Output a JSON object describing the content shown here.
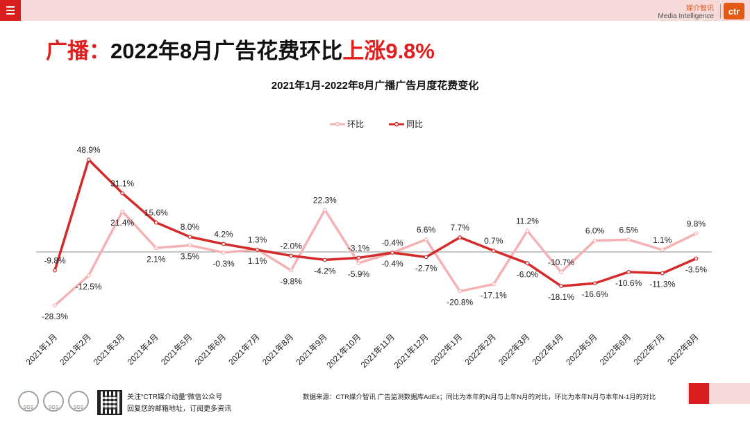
{
  "header": {
    "menu_icon": "menu-icon",
    "brand_cn": "媒介智讯",
    "brand_en": "Media Intelligence",
    "logo_text": "ctr"
  },
  "headline": {
    "prefix": "广播：",
    "middle": "2022年8月广告花费环比",
    "highlight": "上涨9.8%",
    "accent_color": "#e01e1e"
  },
  "chart_data": {
    "type": "line",
    "title": "2021年1月-2022年8月广播广告月度花费变化",
    "categories": [
      "2021年1月",
      "2021年2月",
      "2021年3月",
      "2021年4月",
      "2021年5月",
      "2021年6月",
      "2021年7月",
      "2021年8月",
      "2021年9月",
      "2021年10月",
      "2021年11月",
      "2021年12月",
      "2022年1月",
      "2022年2月",
      "2022年3月",
      "2022年4月",
      "2022年5月",
      "2022年6月",
      "2022年7月",
      "2022年8月"
    ],
    "series": [
      {
        "name": "环比",
        "color": "#f4b2b2",
        "values": [
          -28.3,
          -12.5,
          21.4,
          2.1,
          3.5,
          -0.3,
          1.3,
          -9.8,
          22.3,
          -5.9,
          -0.4,
          6.6,
          -20.8,
          -17.1,
          11.2,
          -10.7,
          6.0,
          6.5,
          1.1,
          9.8
        ],
        "labels": [
          "-28.3%",
          "-12.5%",
          "21.4%",
          "2.1%",
          "3.5%",
          "-0.3%",
          "1.3%",
          "-9.8%",
          "22.3%",
          "-5.9%",
          "-0.4%",
          "6.6%",
          "-20.8%",
          "-17.1%",
          "11.2%",
          "-10.7%",
          "6.0%",
          "6.5%",
          "1.1%",
          "9.8%"
        ]
      },
      {
        "name": "同比",
        "color": "#d42a2a",
        "values": [
          -9.8,
          48.9,
          31.1,
          15.6,
          8.0,
          4.2,
          1.1,
          -2.0,
          -4.2,
          -3.1,
          -0.4,
          -2.7,
          7.7,
          0.7,
          -6.0,
          -18.1,
          -16.6,
          -10.6,
          -11.3,
          -3.5
        ],
        "labels": [
          "-9.8%",
          "48.9%",
          "31.1%",
          "15.6%",
          "8.0%",
          "4.2%",
          "1.1%",
          "-2.0%",
          "-4.2%",
          "-3.1%",
          "-0.4%",
          "-2.7%",
          "7.7%",
          "0.7%",
          "-6.0%",
          "-18.1%",
          "-16.6%",
          "-10.6%",
          "-11.3%",
          "-3.5%"
        ]
      }
    ],
    "ylim": [
      -30,
      50
    ],
    "legend_position": "top-center",
    "grid": false
  },
  "footer": {
    "follow_line1": "关注“CTR媒介动量”微信公众号",
    "follow_line2": "回复您的邮箱地址，订阅更多资讯",
    "certification_icons": [
      "sgs-icon",
      "sgs-icon",
      "sgs-icon"
    ],
    "certification_text": "SGS",
    "qr_icon": "qr-code-icon",
    "source": "数据来源：CTR媒介智讯 广告监测数据库AdEx；同比为本年的N月与上年N月的对比，环比为本年N月与本年N-1月的对比"
  }
}
